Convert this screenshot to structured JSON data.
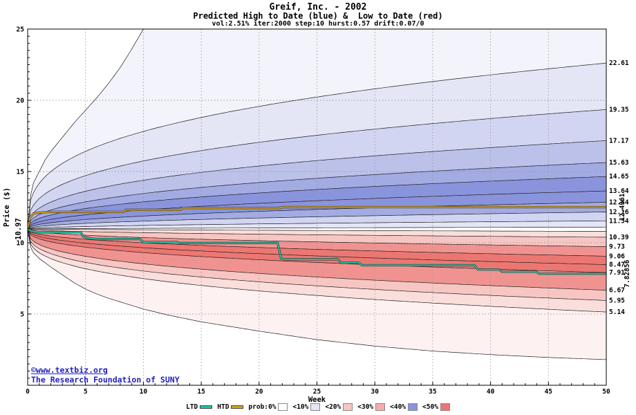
{
  "watermark": {
    "line1": "©www.textbiz.org",
    "line2": "The Research Foundation of SUNY",
    "color": "#2121c0"
  },
  "legend": {
    "items": [
      {
        "label": "LTD",
        "type": "line",
        "color": "#1fc3a4"
      },
      {
        "label": "HTD",
        "type": "line",
        "color": "#d9a216"
      },
      {
        "label": "prob:0%",
        "type": "box",
        "color": "#ffffff"
      },
      {
        "label": "<10%",
        "type": "box",
        "color": "#e4e6f6"
      },
      {
        "label": "<20%",
        "type": "box",
        "color": "#f7c6c3"
      },
      {
        "label": "<30%",
        "type": "box",
        "color": "#f4adaa"
      },
      {
        "label": "<40%",
        "type": "box",
        "color": "#8a94dc"
      },
      {
        "label": "<50%",
        "type": "box",
        "color": "#ec7772"
      }
    ]
  },
  "chart_data": {
    "type": "area",
    "kind": "probability-fan",
    "title": "Greif, Inc. - 2002",
    "subtitle": "Predicted High to Date (blue) &  Low to Date (red)",
    "params": "vol:2.51% iter:2000 step:10 hurst:0.57 drift:0.07/0",
    "xlabel": "Week",
    "ylabel": "Price ($)",
    "xlim": [
      0,
      50
    ],
    "ylim": [
      0,
      25
    ],
    "xticks": [
      0,
      5,
      10,
      15,
      20,
      25,
      30,
      35,
      40,
      45,
      50
    ],
    "yticks": [
      5,
      10,
      15,
      20,
      25
    ],
    "x_minor_step": 1,
    "y_minor_step": 0.5,
    "grid": true,
    "start": {
      "week": 0,
      "price": 10.97,
      "label": "10.97"
    },
    "fan": {
      "start": 10.97,
      "line_color": "#1c1c1c",
      "boundaries": [
        {
          "name": "max-envelope",
          "points": [
            [
              0,
              10.97
            ],
            [
              0.25,
              13.3
            ],
            [
              0.5,
              14.2
            ],
            [
              1,
              15.0
            ],
            [
              1.5,
              15.8
            ],
            [
              2,
              16.4
            ],
            [
              3,
              17.4
            ],
            [
              4,
              18.4
            ],
            [
              5,
              19.3
            ],
            [
              6,
              20.2
            ],
            [
              7,
              21.2
            ],
            [
              8,
              22.3
            ],
            [
              9,
              23.6
            ],
            [
              10,
              25.0
            ],
            [
              11,
              26.3
            ]
          ]
        },
        {
          "name": "high-10",
          "label": "22.61",
          "end": 22.61,
          "p": 0.33
        },
        {
          "name": "high-20",
          "label": "19.35",
          "end": 19.35,
          "p": 0.35
        },
        {
          "name": "high-30",
          "label": "17.17",
          "end": 17.17,
          "p": 0.37
        },
        {
          "name": "high-40",
          "label": "15.63",
          "end": 15.63,
          "p": 0.39
        },
        {
          "name": "high-50",
          "label": "14.65",
          "end": 14.65,
          "p": 0.41
        },
        {
          "name": "high-60",
          "label": "13.64",
          "end": 13.64,
          "p": 0.43
        },
        {
          "name": "high-70",
          "label": "12.84",
          "end": 12.84,
          "p": 0.45
        },
        {
          "name": "high-80",
          "label": "12.16",
          "end": 12.16,
          "p": 0.48
        },
        {
          "name": "high-90",
          "label": "11.54",
          "end": 11.54,
          "p": 0.52
        },
        {
          "name": "high-min",
          "end": 11.1,
          "p": 0.7
        },
        {
          "name": "low-max",
          "end": 10.8,
          "p": 0.7
        },
        {
          "name": "low-10",
          "label": "10.39",
          "end": 10.39,
          "p": 0.5
        },
        {
          "name": "low-20",
          "label": "9.73",
          "end": 9.73,
          "p": 0.45
        },
        {
          "name": "low-30",
          "label": "9.06",
          "end": 9.06,
          "p": 0.42
        },
        {
          "name": "low-40",
          "label": "8.47",
          "end": 8.47,
          "p": 0.4
        },
        {
          "name": "low-50",
          "label": "7.91",
          "end": 7.91,
          "p": 0.38
        },
        {
          "name": "low-60",
          "label": "6.67",
          "end": 6.67,
          "p": 0.35
        },
        {
          "name": "low-70",
          "label": "5.95",
          "end": 5.95,
          "p": 0.33
        },
        {
          "name": "low-80",
          "label": "5.14",
          "end": 5.14,
          "p": 0.32
        },
        {
          "name": "min-envelope",
          "points": [
            [
              0,
              10.97
            ],
            [
              0.25,
              9.7
            ],
            [
              0.5,
              9.3
            ],
            [
              1,
              8.9
            ],
            [
              2,
              8.3
            ],
            [
              3,
              7.75
            ],
            [
              4,
              7.2
            ],
            [
              5,
              6.75
            ],
            [
              6,
              6.4
            ],
            [
              7,
              6.1
            ],
            [
              8,
              5.85
            ],
            [
              10,
              5.35
            ],
            [
              12,
              4.95
            ],
            [
              15,
              4.45
            ],
            [
              20,
              3.8
            ],
            [
              25,
              3.2
            ],
            [
              30,
              2.75
            ],
            [
              35,
              2.4
            ],
            [
              40,
              2.15
            ],
            [
              45,
              1.95
            ],
            [
              50,
              1.8
            ]
          ]
        }
      ],
      "band_colors": [
        "#f3f3fb",
        "#e4e6f6",
        "#d2d5f1",
        "#bcc1ea",
        "#a3abe3",
        "#8a94dc",
        "#8a94dc",
        "#a3abe3",
        "#d2d5f1",
        "#e4e6f6",
        "#ffffff",
        "#fadedc",
        "#f7c6c3",
        "#f09390",
        "#ec7772",
        "#ec7772",
        "#f09390",
        "#f7c6c3",
        "#fadedc",
        "#fdf2f1"
      ]
    },
    "series": [
      {
        "name": "HTD",
        "color": "#d9a216",
        "end_label": "12.4961",
        "end_label_color": "#a08900",
        "points": [
          [
            0,
            10.97
          ],
          [
            0.2,
            11.75
          ],
          [
            0.5,
            12.05
          ],
          [
            1,
            12.12
          ],
          [
            2,
            12.17
          ],
          [
            8.3,
            12.17
          ],
          [
            8.5,
            12.31
          ],
          [
            13.2,
            12.31
          ],
          [
            13.4,
            12.44
          ],
          [
            21.8,
            12.44
          ],
          [
            22,
            12.5
          ],
          [
            50,
            12.5
          ]
        ]
      },
      {
        "name": "LTD",
        "color": "#1fc3a4",
        "end_label": "7.82856",
        "end_label_color": "#11a58d",
        "points": [
          [
            0,
            10.97
          ],
          [
            0.3,
            10.82
          ],
          [
            1,
            10.74
          ],
          [
            4.6,
            10.74
          ],
          [
            4.8,
            10.42
          ],
          [
            5.4,
            10.3
          ],
          [
            6,
            10.26
          ],
          [
            9.7,
            10.26
          ],
          [
            10,
            10.05
          ],
          [
            12.9,
            10.05
          ],
          [
            13.1,
            9.98
          ],
          [
            21.6,
            9.98
          ],
          [
            21.9,
            8.9
          ],
          [
            22.2,
            8.84
          ],
          [
            26.8,
            8.84
          ],
          [
            27.1,
            8.6
          ],
          [
            28.6,
            8.6
          ],
          [
            28.9,
            8.42
          ],
          [
            38.6,
            8.42
          ],
          [
            38.9,
            8.12
          ],
          [
            40.7,
            8.12
          ],
          [
            41,
            7.97
          ],
          [
            43.9,
            7.97
          ],
          [
            44.2,
            7.83
          ],
          [
            50,
            7.83
          ]
        ]
      }
    ]
  }
}
